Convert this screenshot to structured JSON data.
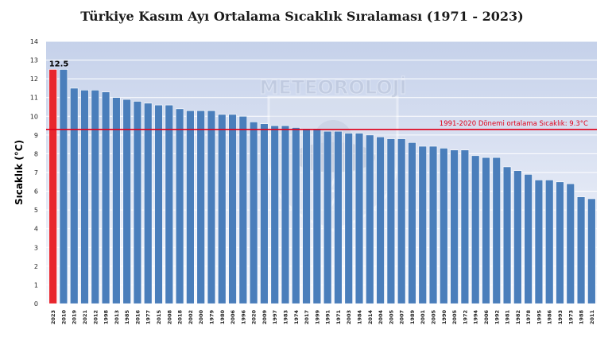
{
  "chart_data": {
    "type": "bar",
    "title": "Türkiye Kasım Ayı Ortalama Sıcaklık Sıralaması (1971 - 2023)",
    "xlabel": "",
    "ylabel": "Sıcaklık (°C)",
    "ylim": [
      0,
      14
    ],
    "yticks": [
      0,
      1,
      2,
      3,
      4,
      5,
      6,
      7,
      8,
      9,
      10,
      11,
      12,
      13,
      14
    ],
    "grid": true,
    "categories": [
      "2023",
      "2010",
      "2019",
      "2021",
      "2012",
      "1998",
      "2013",
      "1985",
      "2016",
      "1977",
      "2015",
      "2008",
      "2018",
      "2002",
      "2000",
      "1979",
      "1980",
      "2006",
      "1996",
      "2020",
      "2009",
      "1997",
      "1983",
      "1974",
      "2017",
      "1999",
      "1991",
      "1971",
      "2003",
      "1984",
      "2014",
      "2004",
      "2005",
      "2007",
      "1989",
      "2001",
      "2005",
      "1990",
      "2005",
      "1972",
      "1994",
      "2006",
      "1992",
      "1981",
      "1982",
      "1978",
      "1995",
      "1986",
      "1993",
      "1973",
      "1988",
      "2011"
    ],
    "values": [
      12.5,
      12.5,
      11.5,
      11.4,
      11.4,
      11.3,
      11.0,
      10.9,
      10.8,
      10.7,
      10.6,
      10.6,
      10.4,
      10.3,
      10.3,
      10.3,
      10.1,
      10.1,
      10.0,
      9.7,
      9.6,
      9.5,
      9.5,
      9.4,
      9.3,
      9.3,
      9.2,
      9.2,
      9.1,
      9.1,
      9.0,
      8.9,
      8.8,
      8.8,
      8.6,
      8.4,
      8.4,
      8.3,
      8.2,
      8.2,
      7.9,
      7.8,
      7.8,
      7.3,
      7.1,
      6.9,
      6.6,
      6.6,
      6.5,
      6.4,
      5.7,
      5.6
    ],
    "highlight_index": 0,
    "highlight_label": "12.5",
    "reference_line": {
      "value": 9.3,
      "label": "1991-2020 Dönemi ortalama Sıcaklık: 9.3°C"
    },
    "watermark": "METEOROLOJİ",
    "colors": {
      "bar": "#4a7ebb",
      "bar_edge": "#ffffff",
      "highlight": "#e8262d",
      "reference": "#e0001a",
      "plot_bg_top": "#c5d1ea",
      "plot_bg_bottom": "#f8f9fd",
      "grid": "#ffffff"
    }
  }
}
